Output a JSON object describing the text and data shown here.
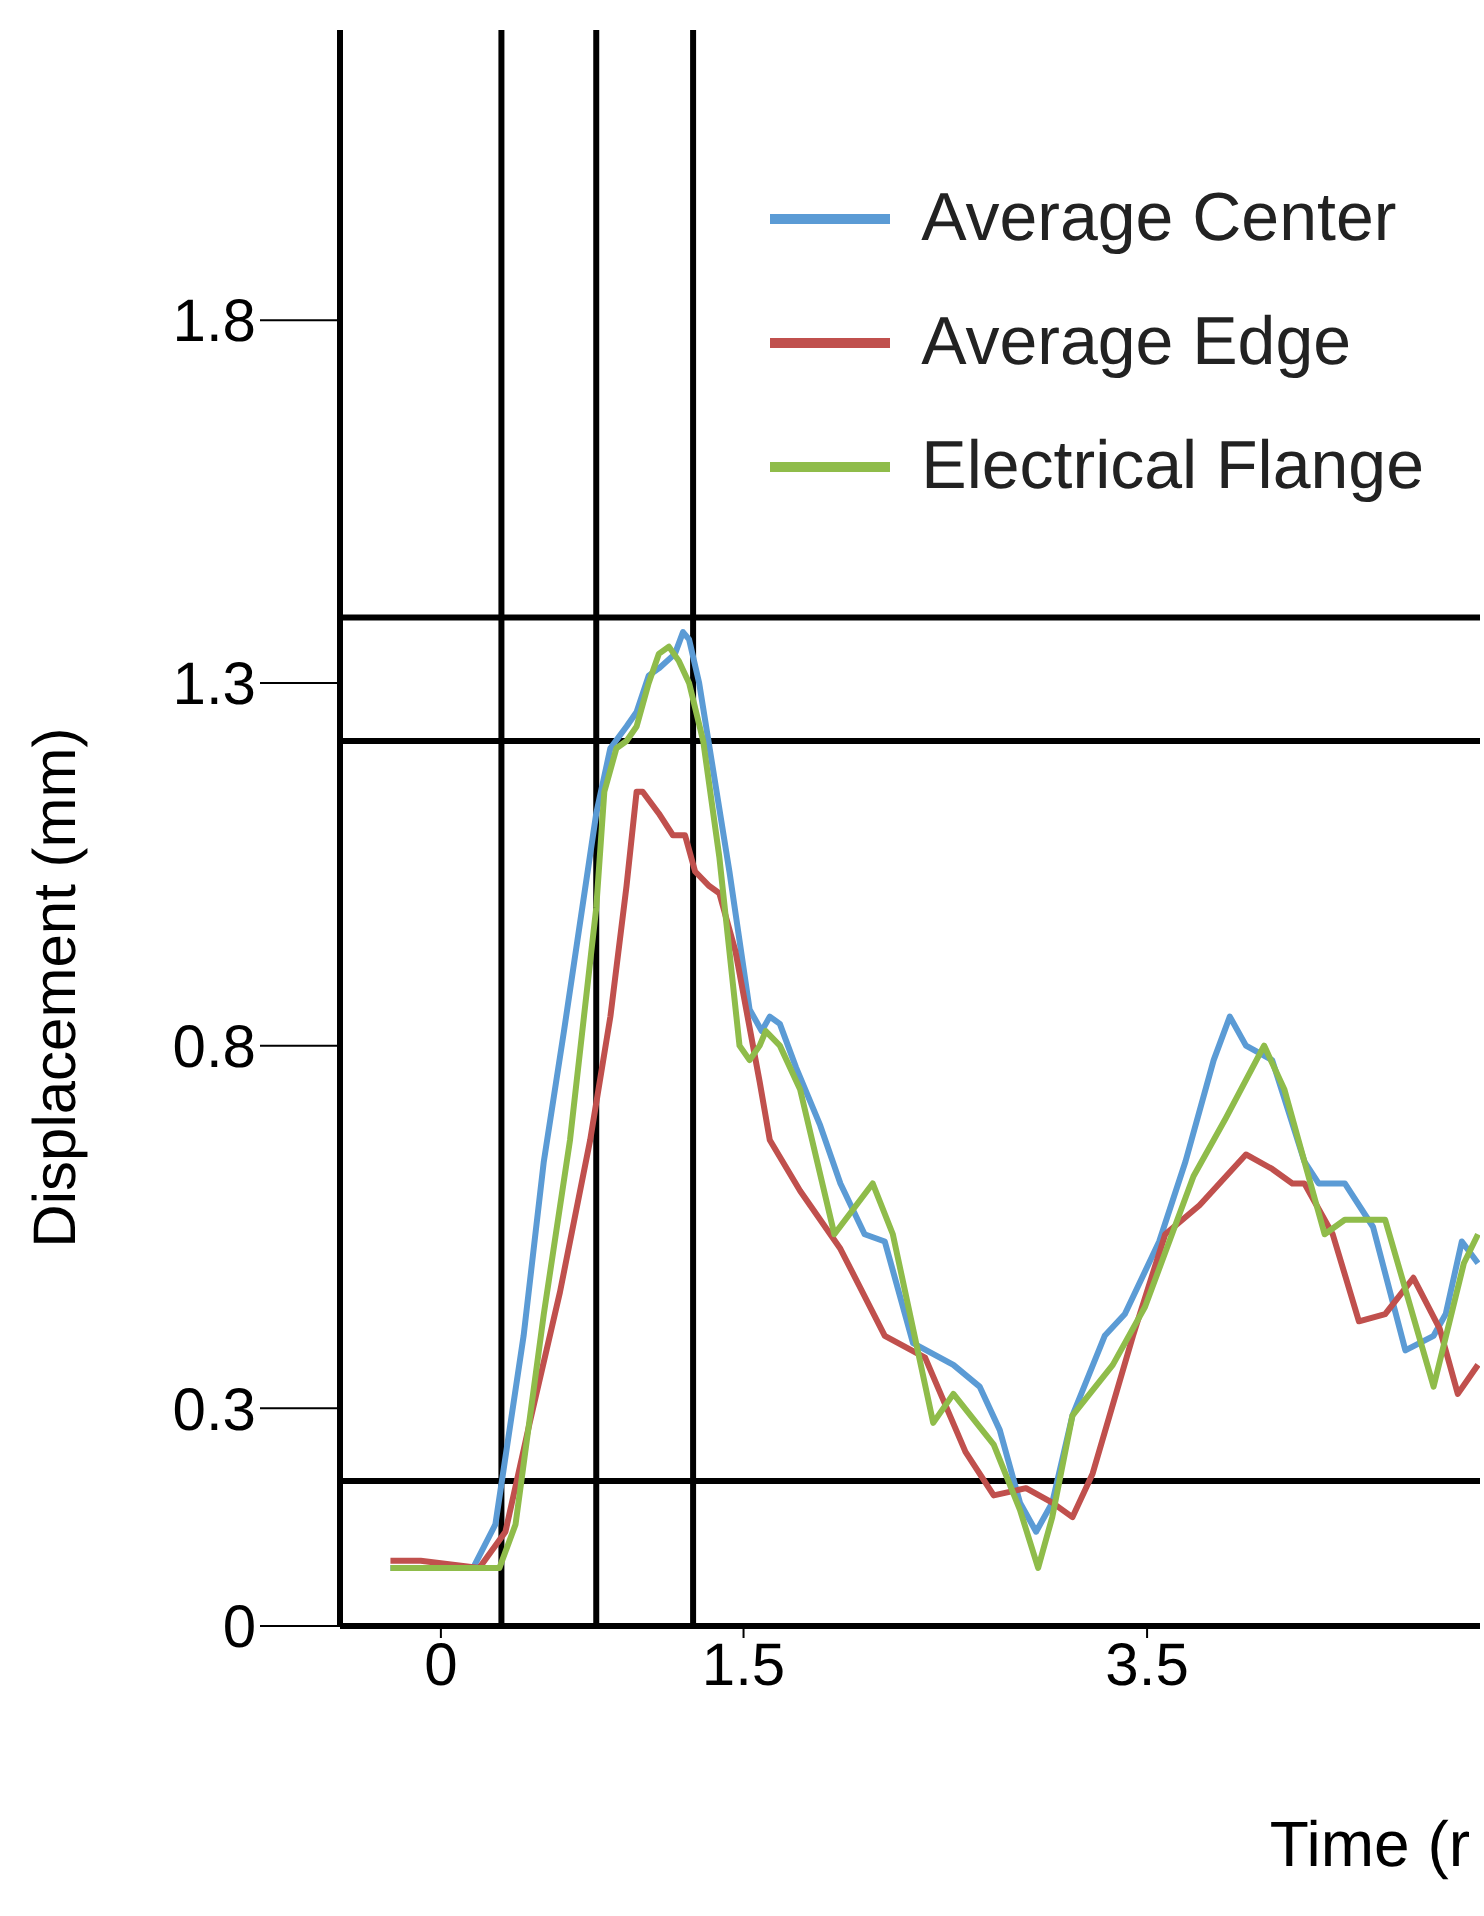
{
  "chart_data": {
    "type": "line",
    "xlabel": "Time (r",
    "ylabel": "Displacement (mm)",
    "xlim": [
      -0.5,
      5.15
    ],
    "xticks": [
      0,
      1.5,
      3.5
    ],
    "ylim": [
      0,
      2.2
    ],
    "yticks": [
      0,
      0.3,
      0.8,
      1.3,
      1.8
    ],
    "grid": false,
    "legend": "top right",
    "marker": "none",
    "line_style": "solid",
    "ref_lines": [
      {
        "axis": "y",
        "value": 1.39,
        "color": "#000000"
      },
      {
        "axis": "y",
        "value": 1.22,
        "color": "#000000"
      },
      {
        "axis": "y",
        "value": 0.2,
        "color": "#000000"
      },
      {
        "axis": "x",
        "value": 0.3,
        "color": "#000000"
      },
      {
        "axis": "x",
        "value": 0.77,
        "color": "#000000"
      },
      {
        "axis": "x",
        "value": 1.25,
        "color": "#000000"
      }
    ],
    "series": [
      {
        "name": "Average Center",
        "color": "#5b9bd5",
        "x": [
          -0.25,
          0.16,
          0.27,
          0.41,
          0.51,
          0.61,
          0.77,
          0.84,
          0.92,
          0.97,
          1.03,
          1.08,
          1.16,
          1.2,
          1.23,
          1.28,
          1.43,
          1.53,
          1.59,
          1.63,
          1.68,
          1.76,
          1.88,
          1.98,
          2.1,
          2.2,
          2.34,
          2.54,
          2.67,
          2.77,
          2.87,
          2.95,
          3.03,
          3.13,
          3.29,
          3.39,
          3.56,
          3.69,
          3.83,
          3.91,
          3.99,
          4.12,
          4.28,
          4.35,
          4.48,
          4.62,
          4.78,
          4.92,
          4.98,
          5.06,
          5.14
        ],
        "values": [
          0.08,
          0.08,
          0.14,
          0.4,
          0.64,
          0.82,
          1.12,
          1.21,
          1.24,
          1.26,
          1.31,
          1.32,
          1.34,
          1.37,
          1.36,
          1.3,
          1.04,
          0.85,
          0.82,
          0.84,
          0.83,
          0.77,
          0.69,
          0.61,
          0.54,
          0.53,
          0.39,
          0.36,
          0.33,
          0.27,
          0.17,
          0.13,
          0.17,
          0.29,
          0.4,
          0.43,
          0.53,
          0.64,
          0.78,
          0.84,
          0.8,
          0.78,
          0.64,
          0.61,
          0.61,
          0.55,
          0.38,
          0.4,
          0.43,
          0.53,
          0.5
        ]
      },
      {
        "name": "Average Edge",
        "color": "#c0504d",
        "x": [
          -0.25,
          -0.1,
          0.19,
          0.32,
          0.44,
          0.59,
          0.74,
          0.84,
          0.92,
          0.97,
          1.0,
          1.08,
          1.15,
          1.21,
          1.26,
          1.33,
          1.38,
          1.46,
          1.58,
          1.63,
          1.78,
          1.98,
          2.2,
          2.4,
          2.6,
          2.74,
          2.9,
          3.03,
          3.13,
          3.23,
          3.43,
          3.59,
          3.76,
          3.99,
          4.12,
          4.22,
          4.28,
          4.42,
          4.55,
          4.68,
          4.82,
          4.95,
          5.04,
          5.14
        ],
        "values": [
          0.09,
          0.09,
          0.08,
          0.13,
          0.28,
          0.46,
          0.67,
          0.84,
          1.02,
          1.15,
          1.15,
          1.12,
          1.09,
          1.09,
          1.04,
          1.02,
          1.01,
          0.93,
          0.75,
          0.67,
          0.6,
          0.52,
          0.4,
          0.37,
          0.24,
          0.18,
          0.19,
          0.17,
          0.15,
          0.21,
          0.4,
          0.54,
          0.58,
          0.65,
          0.63,
          0.61,
          0.61,
          0.54,
          0.42,
          0.43,
          0.48,
          0.41,
          0.32,
          0.36
        ]
      },
      {
        "name": "Electrical Flange",
        "color": "#8fbc4a",
        "x": [
          -0.25,
          0.29,
          0.37,
          0.51,
          0.64,
          0.77,
          0.81,
          0.87,
          0.92,
          0.97,
          1.03,
          1.08,
          1.13,
          1.18,
          1.23,
          1.3,
          1.38,
          1.48,
          1.53,
          1.58,
          1.61,
          1.68,
          1.78,
          1.95,
          2.14,
          2.24,
          2.44,
          2.54,
          2.74,
          2.87,
          2.96,
          3.03,
          3.13,
          3.33,
          3.49,
          3.73,
          3.89,
          4.08,
          4.18,
          4.38,
          4.48,
          4.68,
          4.92,
          5.07,
          5.14
        ],
        "values": [
          0.08,
          0.08,
          0.14,
          0.43,
          0.67,
          0.99,
          1.15,
          1.21,
          1.22,
          1.24,
          1.3,
          1.34,
          1.35,
          1.33,
          1.3,
          1.22,
          1.06,
          0.8,
          0.78,
          0.8,
          0.82,
          0.8,
          0.74,
          0.54,
          0.61,
          0.54,
          0.28,
          0.32,
          0.25,
          0.16,
          0.08,
          0.15,
          0.29,
          0.36,
          0.44,
          0.62,
          0.7,
          0.8,
          0.74,
          0.54,
          0.56,
          0.56,
          0.33,
          0.5,
          0.54
        ]
      }
    ]
  }
}
